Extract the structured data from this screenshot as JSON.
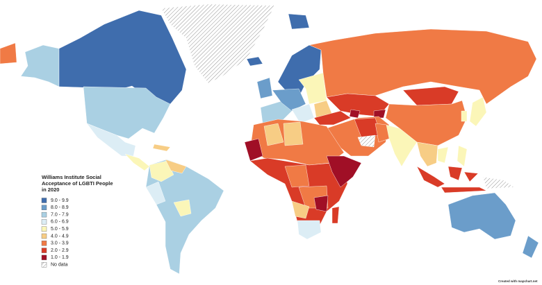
{
  "legend": {
    "title": "Williams Institute Social Acceptance of LGBTI People in 2020",
    "items": [
      {
        "label": "9.0 - 9.9",
        "color": "#3f6dad"
      },
      {
        "label": "8.0 - 8.9",
        "color": "#6b9dca"
      },
      {
        "label": "7.0 - 7.9",
        "color": "#aad0e3"
      },
      {
        "label": "6.0 - 6.9",
        "color": "#dcedf5"
      },
      {
        "label": "5.0 - 5.9",
        "color": "#fbf6b8"
      },
      {
        "label": "4.0 - 4.9",
        "color": "#f7cd85"
      },
      {
        "label": "3.0 - 3.9",
        "color": "#f07a45"
      },
      {
        "label": "2.0 - 2.9",
        "color": "#d93b27"
      },
      {
        "label": "1.0 - 1.9",
        "color": "#a00f26"
      },
      {
        "label": "No data",
        "color": "hatch"
      }
    ]
  },
  "credit": "Created with mapchart.net"
}
